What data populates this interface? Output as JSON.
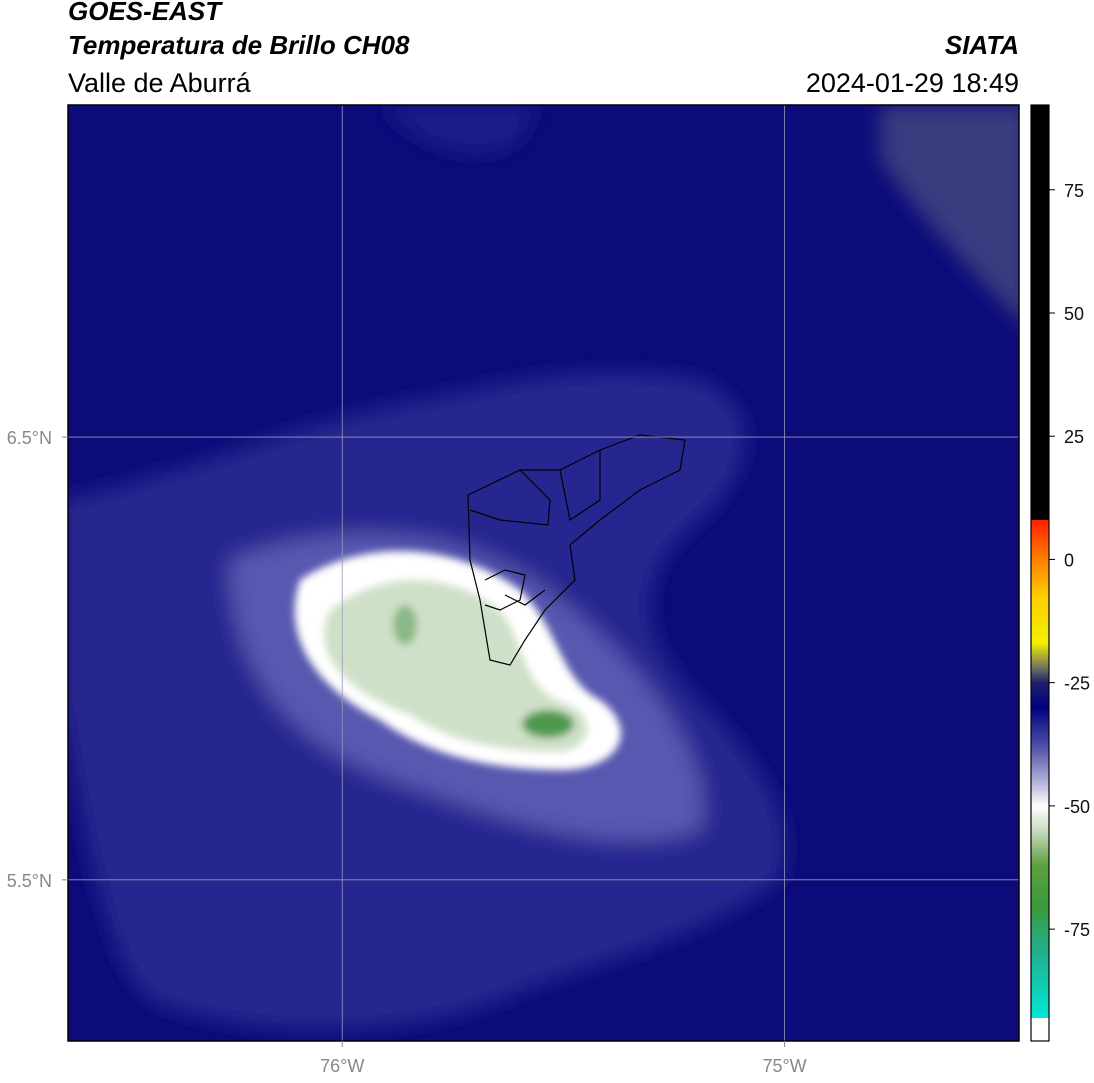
{
  "header": {
    "title": "GOES-EAST",
    "subtitle": "Temperatura de Brillo CH08",
    "region": "Valle de Aburrá",
    "source": "SIATA",
    "datetime": "2024-01-29 18:49"
  },
  "map": {
    "xlim": [
      -76.62,
      -74.47
    ],
    "ylim": [
      5.136,
      7.25
    ],
    "xticks": [
      {
        "value": -76,
        "label": "76°W"
      },
      {
        "value": -75,
        "label": "75°W"
      }
    ],
    "yticks": [
      {
        "value": 6.5,
        "label": "6.5°N"
      },
      {
        "value": 5.5,
        "label": "5.5°N"
      }
    ],
    "grid": true
  },
  "colorbar": {
    "lim": [
      -97.7,
      92.2
    ],
    "ticks": [
      75,
      50,
      25,
      0,
      -25,
      -50,
      -75
    ],
    "stops": [
      {
        "value": -97.7,
        "color": "#ffffff"
      },
      {
        "value": -93,
        "color": "#ffffff"
      },
      {
        "value": -93,
        "color": "#00e8d8"
      },
      {
        "value": -80,
        "color": "#20b090"
      },
      {
        "value": -70,
        "color": "#3a9a3a"
      },
      {
        "value": -62,
        "color": "#60a040"
      },
      {
        "value": -55,
        "color": "#c8dcc0"
      },
      {
        "value": -50,
        "color": "#ffffff"
      },
      {
        "value": -45,
        "color": "#b0b0d8"
      },
      {
        "value": -38,
        "color": "#5050a8"
      },
      {
        "value": -30,
        "color": "#000080"
      },
      {
        "value": -25,
        "color": "#20206a"
      },
      {
        "value": -22,
        "color": "#707060"
      },
      {
        "value": -17,
        "color": "#f0f000"
      },
      {
        "value": -8,
        "color": "#ffd000"
      },
      {
        "value": 0,
        "color": "#ff8000"
      },
      {
        "value": 8,
        "color": "#ff2000"
      },
      {
        "value": 8,
        "color": "#000000"
      },
      {
        "value": 92.2,
        "color": "#000000"
      }
    ]
  }
}
